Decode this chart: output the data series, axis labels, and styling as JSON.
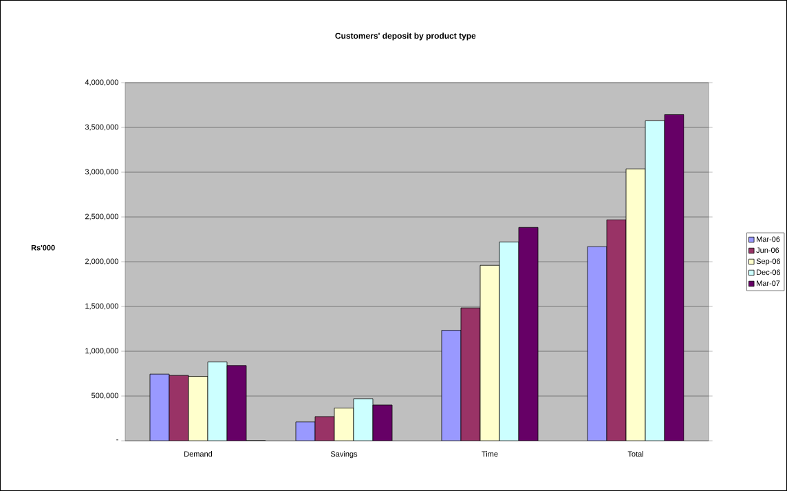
{
  "chart_data": {
    "type": "bar",
    "title": "Customers' deposit by product type",
    "ylabel": "Rs'000",
    "categories": [
      "Demand",
      "Savings",
      "Time",
      "Total"
    ],
    "series": [
      {
        "name": "Mar-06",
        "color": "#9999ff",
        "values": [
          745000,
          210000,
          1234000,
          2169000
        ]
      },
      {
        "name": "Jun-06",
        "color": "#993366",
        "values": [
          730000,
          270000,
          1484000,
          2470000
        ]
      },
      {
        "name": "Sep-06",
        "color": "#ffffcc",
        "values": [
          720000,
          365000,
          1960000,
          3037000
        ]
      },
      {
        "name": "Dec-06",
        "color": "#ccffff",
        "values": [
          880000,
          470000,
          2221000,
          3574000
        ]
      },
      {
        "name": "Mar-07",
        "color": "#660066",
        "values": [
          840000,
          400000,
          2383000,
          3643000
        ]
      },
      {
        "color": "#ff8080",
        "values": [
          0,
          null,
          null,
          null
        ]
      }
    ],
    "ylim": [
      0,
      4000000
    ],
    "yticks": [
      {
        "value": 0,
        "label": "-"
      },
      {
        "value": 500000,
        "label": "500,000"
      },
      {
        "value": 1000000,
        "label": "1,000,000"
      },
      {
        "value": 1500000,
        "label": "1,500,000"
      },
      {
        "value": 2000000,
        "label": "2,000,000"
      },
      {
        "value": 2500000,
        "label": "2,500,000"
      },
      {
        "value": 3000000,
        "label": "3,000,000"
      },
      {
        "value": 3500000,
        "label": "3,500,000"
      },
      {
        "value": 4000000,
        "label": "4,000,000"
      }
    ],
    "grid": "y",
    "legend": "right"
  }
}
